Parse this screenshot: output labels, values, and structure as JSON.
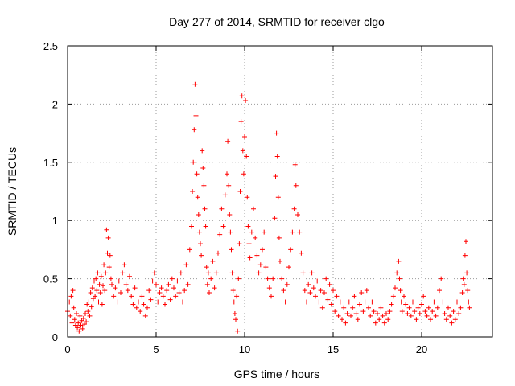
{
  "chart_data": {
    "type": "scatter",
    "title": "Day 277 of 2014, SRMTID for receiver clgo",
    "xlabel": "GPS time / hours",
    "ylabel": "SRMTID / TECUs",
    "xlim": [
      0,
      24
    ],
    "ylim": [
      0,
      2.5
    ],
    "xticks": [
      "0",
      "5",
      "10",
      "15",
      "20"
    ],
    "yticks": [
      "0",
      "0.5",
      "1",
      "1.5",
      "2",
      "2.5"
    ],
    "grid": "dotted",
    "marker": "+",
    "marker_color": "#ff0000",
    "series": [
      {
        "name": "SRMTID",
        "points": [
          [
            0.0,
            0.22
          ],
          [
            0.1,
            0.3
          ],
          [
            0.15,
            0.18
          ],
          [
            0.2,
            0.35
          ],
          [
            0.25,
            0.12
          ],
          [
            0.3,
            0.4
          ],
          [
            0.35,
            0.25
          ],
          [
            0.4,
            0.15
          ],
          [
            0.45,
            0.1
          ],
          [
            0.5,
            0.2
          ],
          [
            0.55,
            0.08
          ],
          [
            0.6,
            0.12
          ],
          [
            0.65,
            0.05
          ],
          [
            0.7,
            0.18
          ],
          [
            0.75,
            0.1
          ],
          [
            0.8,
            0.14
          ],
          [
            0.85,
            0.07
          ],
          [
            0.9,
            0.16
          ],
          [
            0.95,
            0.11
          ],
          [
            1.0,
            0.2
          ],
          [
            1.05,
            0.13
          ],
          [
            1.1,
            0.28
          ],
          [
            1.15,
            0.22
          ],
          [
            1.2,
            0.3
          ],
          [
            1.25,
            0.18
          ],
          [
            1.3,
            0.38
          ],
          [
            1.35,
            0.26
          ],
          [
            1.4,
            0.42
          ],
          [
            1.45,
            0.33
          ],
          [
            1.5,
            0.48
          ],
          [
            1.55,
            0.35
          ],
          [
            1.6,
            0.5
          ],
          [
            1.65,
            0.4
          ],
          [
            1.7,
            0.55
          ],
          [
            1.75,
            0.3
          ],
          [
            1.8,
            0.45
          ],
          [
            1.85,
            0.38
          ],
          [
            1.9,
            0.52
          ],
          [
            1.95,
            0.28
          ],
          [
            2.0,
            0.44
          ],
          [
            2.05,
            0.62
          ],
          [
            2.1,
            0.4
          ],
          [
            2.15,
            0.55
          ],
          [
            2.2,
            0.92
          ],
          [
            2.25,
            0.72
          ],
          [
            2.3,
            0.85
          ],
          [
            2.35,
            0.6
          ],
          [
            2.4,
            0.7
          ],
          [
            2.45,
            0.5
          ],
          [
            2.5,
            0.45
          ],
          [
            2.6,
            0.35
          ],
          [
            2.7,
            0.42
          ],
          [
            2.8,
            0.3
          ],
          [
            2.9,
            0.48
          ],
          [
            3.0,
            0.38
          ],
          [
            3.1,
            0.55
          ],
          [
            3.2,
            0.62
          ],
          [
            3.3,
            0.45
          ],
          [
            3.4,
            0.4
          ],
          [
            3.5,
            0.52
          ],
          [
            3.6,
            0.35
          ],
          [
            3.7,
            0.28
          ],
          [
            3.8,
            0.42
          ],
          [
            3.9,
            0.25
          ],
          [
            4.0,
            0.3
          ],
          [
            4.1,
            0.22
          ],
          [
            4.2,
            0.35
          ],
          [
            4.3,
            0.28
          ],
          [
            4.4,
            0.18
          ],
          [
            4.5,
            0.25
          ],
          [
            4.6,
            0.4
          ],
          [
            4.7,
            0.32
          ],
          [
            4.8,
            0.48
          ],
          [
            4.9,
            0.55
          ],
          [
            5.0,
            0.45
          ],
          [
            5.1,
            0.3
          ],
          [
            5.2,
            0.38
          ],
          [
            5.3,
            0.42
          ],
          [
            5.4,
            0.35
          ],
          [
            5.5,
            0.28
          ],
          [
            5.6,
            0.4
          ],
          [
            5.7,
            0.45
          ],
          [
            5.8,
            0.32
          ],
          [
            5.9,
            0.5
          ],
          [
            6.0,
            0.42
          ],
          [
            6.1,
            0.35
          ],
          [
            6.2,
            0.48
          ],
          [
            6.3,
            0.38
          ],
          [
            6.4,
            0.55
          ],
          [
            6.5,
            0.3
          ],
          [
            6.6,
            0.4
          ],
          [
            6.7,
            0.62
          ],
          [
            6.8,
            0.45
          ],
          [
            6.9,
            0.75
          ],
          [
            7.0,
            0.95
          ],
          [
            7.05,
            1.25
          ],
          [
            7.1,
            1.5
          ],
          [
            7.15,
            1.78
          ],
          [
            7.2,
            2.17
          ],
          [
            7.25,
            1.9
          ],
          [
            7.3,
            1.4
          ],
          [
            7.35,
            1.2
          ],
          [
            7.4,
            1.05
          ],
          [
            7.45,
            0.9
          ],
          [
            7.5,
            0.8
          ],
          [
            7.55,
            0.7
          ],
          [
            7.6,
            1.6
          ],
          [
            7.65,
            1.45
          ],
          [
            7.7,
            1.3
          ],
          [
            7.75,
            1.1
          ],
          [
            7.8,
            0.95
          ],
          [
            7.85,
            0.6
          ],
          [
            7.9,
            0.45
          ],
          [
            7.95,
            0.55
          ],
          [
            8.0,
            0.38
          ],
          [
            8.1,
            0.5
          ],
          [
            8.2,
            0.65
          ],
          [
            8.3,
            0.42
          ],
          [
            8.4,
            0.55
          ],
          [
            8.5,
            0.72
          ],
          [
            8.6,
            0.88
          ],
          [
            8.7,
            1.1
          ],
          [
            8.8,
            0.95
          ],
          [
            8.9,
            1.22
          ],
          [
            9.0,
            1.4
          ],
          [
            9.05,
            1.68
          ],
          [
            9.1,
            1.3
          ],
          [
            9.15,
            1.05
          ],
          [
            9.2,
            0.9
          ],
          [
            9.25,
            0.75
          ],
          [
            9.3,
            0.55
          ],
          [
            9.35,
            0.4
          ],
          [
            9.4,
            0.3
          ],
          [
            9.45,
            0.2
          ],
          [
            9.5,
            0.15
          ],
          [
            9.55,
            0.35
          ],
          [
            9.6,
            0.05
          ],
          [
            9.65,
            0.5
          ],
          [
            9.7,
            0.8
          ],
          [
            9.75,
            1.25
          ],
          [
            9.8,
            1.85
          ],
          [
            9.85,
            2.07
          ],
          [
            9.9,
            1.6
          ],
          [
            9.95,
            1.4
          ],
          [
            10.0,
            1.72
          ],
          [
            10.05,
            2.03
          ],
          [
            10.1,
            1.55
          ],
          [
            10.15,
            1.2
          ],
          [
            10.2,
            0.95
          ],
          [
            10.25,
            0.8
          ],
          [
            10.3,
            0.68
          ],
          [
            10.4,
            0.9
          ],
          [
            10.5,
            1.1
          ],
          [
            10.6,
            0.85
          ],
          [
            10.7,
            0.7
          ],
          [
            10.8,
            0.55
          ],
          [
            10.9,
            0.62
          ],
          [
            11.0,
            0.75
          ],
          [
            11.1,
            0.9
          ],
          [
            11.2,
            0.6
          ],
          [
            11.3,
            0.5
          ],
          [
            11.4,
            0.42
          ],
          [
            11.5,
            0.35
          ],
          [
            11.6,
            0.5
          ],
          [
            11.7,
            1.02
          ],
          [
            11.75,
            1.38
          ],
          [
            11.8,
            1.75
          ],
          [
            11.85,
            1.55
          ],
          [
            11.9,
            1.2
          ],
          [
            11.95,
            0.85
          ],
          [
            12.0,
            0.65
          ],
          [
            12.1,
            0.5
          ],
          [
            12.2,
            0.4
          ],
          [
            12.3,
            0.3
          ],
          [
            12.4,
            0.45
          ],
          [
            12.5,
            0.6
          ],
          [
            12.6,
            0.75
          ],
          [
            12.7,
            0.9
          ],
          [
            12.8,
            1.1
          ],
          [
            12.85,
            1.48
          ],
          [
            12.9,
            1.3
          ],
          [
            13.0,
            1.05
          ],
          [
            13.1,
            0.9
          ],
          [
            13.2,
            0.72
          ],
          [
            13.3,
            0.55
          ],
          [
            13.4,
            0.4
          ],
          [
            13.5,
            0.3
          ],
          [
            13.6,
            0.45
          ],
          [
            13.7,
            0.38
          ],
          [
            13.8,
            0.55
          ],
          [
            13.9,
            0.42
          ],
          [
            14.0,
            0.35
          ],
          [
            14.1,
            0.48
          ],
          [
            14.2,
            0.3
          ],
          [
            14.3,
            0.4
          ],
          [
            14.4,
            0.25
          ],
          [
            14.5,
            0.38
          ],
          [
            14.6,
            0.5
          ],
          [
            14.7,
            0.32
          ],
          [
            14.8,
            0.45
          ],
          [
            14.9,
            0.28
          ],
          [
            15.0,
            0.4
          ],
          [
            15.1,
            0.22
          ],
          [
            15.2,
            0.35
          ],
          [
            15.3,
            0.18
          ],
          [
            15.4,
            0.3
          ],
          [
            15.5,
            0.15
          ],
          [
            15.6,
            0.25
          ],
          [
            15.7,
            0.12
          ],
          [
            15.8,
            0.2
          ],
          [
            15.9,
            0.3
          ],
          [
            16.0,
            0.18
          ],
          [
            16.1,
            0.25
          ],
          [
            16.2,
            0.35
          ],
          [
            16.3,
            0.2
          ],
          [
            16.4,
            0.15
          ],
          [
            16.5,
            0.28
          ],
          [
            16.6,
            0.38
          ],
          [
            16.7,
            0.22
          ],
          [
            16.8,
            0.3
          ],
          [
            16.9,
            0.4
          ],
          [
            17.0,
            0.25
          ],
          [
            17.1,
            0.18
          ],
          [
            17.2,
            0.3
          ],
          [
            17.3,
            0.22
          ],
          [
            17.4,
            0.12
          ],
          [
            17.5,
            0.2
          ],
          [
            17.6,
            0.15
          ],
          [
            17.7,
            0.25
          ],
          [
            17.8,
            0.18
          ],
          [
            17.9,
            0.12
          ],
          [
            18.0,
            0.2
          ],
          [
            18.1,
            0.15
          ],
          [
            18.2,
            0.22
          ],
          [
            18.3,
            0.28
          ],
          [
            18.4,
            0.35
          ],
          [
            18.5,
            0.42
          ],
          [
            18.6,
            0.55
          ],
          [
            18.7,
            0.65
          ],
          [
            18.75,
            0.5
          ],
          [
            18.8,
            0.4
          ],
          [
            18.85,
            0.3
          ],
          [
            18.9,
            0.22
          ],
          [
            19.0,
            0.35
          ],
          [
            19.1,
            0.28
          ],
          [
            19.2,
            0.2
          ],
          [
            19.3,
            0.25
          ],
          [
            19.4,
            0.18
          ],
          [
            19.5,
            0.3
          ],
          [
            19.6,
            0.22
          ],
          [
            19.7,
            0.15
          ],
          [
            19.8,
            0.25
          ],
          [
            19.9,
            0.2
          ],
          [
            20.0,
            0.28
          ],
          [
            20.1,
            0.35
          ],
          [
            20.2,
            0.22
          ],
          [
            20.3,
            0.18
          ],
          [
            20.4,
            0.25
          ],
          [
            20.5,
            0.15
          ],
          [
            20.6,
            0.22
          ],
          [
            20.7,
            0.3
          ],
          [
            20.8,
            0.18
          ],
          [
            20.9,
            0.25
          ],
          [
            21.0,
            0.4
          ],
          [
            21.1,
            0.5
          ],
          [
            21.2,
            0.3
          ],
          [
            21.3,
            0.2
          ],
          [
            21.4,
            0.15
          ],
          [
            21.5,
            0.25
          ],
          [
            21.6,
            0.18
          ],
          [
            21.7,
            0.12
          ],
          [
            21.8,
            0.22
          ],
          [
            21.9,
            0.15
          ],
          [
            22.0,
            0.3
          ],
          [
            22.1,
            0.2
          ],
          [
            22.2,
            0.25
          ],
          [
            22.3,
            0.38
          ],
          [
            22.35,
            0.5
          ],
          [
            22.4,
            0.45
          ],
          [
            22.45,
            0.7
          ],
          [
            22.5,
            0.82
          ],
          [
            22.55,
            0.55
          ],
          [
            22.6,
            0.4
          ],
          [
            22.65,
            0.3
          ],
          [
            22.7,
            0.25
          ]
        ]
      }
    ]
  }
}
